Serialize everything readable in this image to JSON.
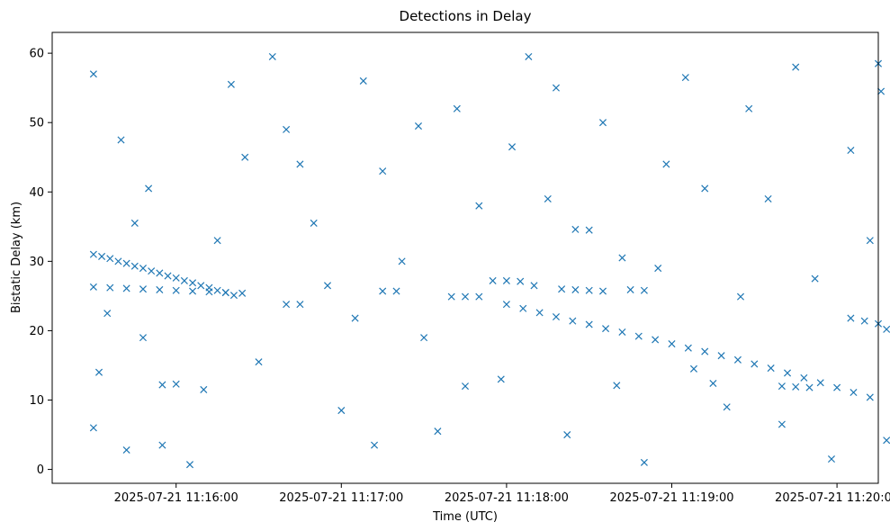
{
  "chart_data": {
    "type": "scatter",
    "title": "Detections in Delay",
    "xlabel": "Time (UTC)",
    "ylabel": "Bistatic Delay (km)",
    "marker": "x",
    "marker_color": "#1f77b4",
    "grid": false,
    "legend": "none",
    "xlim": [
      "2025-07-21 11:15:15",
      "2025-07-21 11:20:15"
    ],
    "ylim": [
      -2,
      63
    ],
    "xticks": [
      {
        "label": "2025-07-21 11:16:00",
        "value": "2025-07-21 11:16:00"
      },
      {
        "label": "2025-07-21 11:17:00",
        "value": "2025-07-21 11:17:00"
      },
      {
        "label": "2025-07-21 11:18:00",
        "value": "2025-07-21 11:18:00"
      },
      {
        "label": "2025-07-21 11:19:00",
        "value": "2025-07-21 11:19:00"
      },
      {
        "label": "2025-07-21 11:20:00",
        "value": "2025-07-21 11:20:00"
      }
    ],
    "yticks": [
      {
        "label": "0",
        "value": 0
      },
      {
        "label": "10",
        "value": 10
      },
      {
        "label": "20",
        "value": 20
      },
      {
        "label": "30",
        "value": 30
      },
      {
        "label": "40",
        "value": 40
      },
      {
        "label": "50",
        "value": 50
      },
      {
        "label": "60",
        "value": 60
      }
    ],
    "series": [
      {
        "points": [
          [
            "2025-07-21 11:15:30",
            31.0
          ],
          [
            "2025-07-21 11:15:33",
            30.7
          ],
          [
            "2025-07-21 11:15:36",
            30.4
          ],
          [
            "2025-07-21 11:15:39",
            30.0
          ],
          [
            "2025-07-21 11:15:42",
            29.7
          ],
          [
            "2025-07-21 11:15:45",
            29.3
          ],
          [
            "2025-07-21 11:15:48",
            29.0
          ],
          [
            "2025-07-21 11:15:51",
            28.6
          ],
          [
            "2025-07-21 11:15:54",
            28.3
          ],
          [
            "2025-07-21 11:15:57",
            27.9
          ],
          [
            "2025-07-21 11:16:00",
            27.6
          ],
          [
            "2025-07-21 11:16:03",
            27.2
          ],
          [
            "2025-07-21 11:16:06",
            26.9
          ],
          [
            "2025-07-21 11:16:09",
            26.5
          ],
          [
            "2025-07-21 11:16:12",
            26.2
          ],
          [
            "2025-07-21 11:16:15",
            25.8
          ],
          [
            "2025-07-21 11:16:18",
            25.5
          ],
          [
            "2025-07-21 11:16:21",
            25.1
          ],
          [
            "2025-07-21 11:15:30",
            26.3
          ],
          [
            "2025-07-21 11:15:36",
            26.2
          ],
          [
            "2025-07-21 11:15:42",
            26.1
          ],
          [
            "2025-07-21 11:15:48",
            26.0
          ],
          [
            "2025-07-21 11:15:54",
            25.9
          ],
          [
            "2025-07-21 11:16:00",
            25.8
          ],
          [
            "2025-07-21 11:16:06",
            25.7
          ],
          [
            "2025-07-21 11:16:12",
            25.6
          ],
          [
            "2025-07-21 11:16:18",
            25.5
          ],
          [
            "2025-07-21 11:16:24",
            25.4
          ],
          [
            "2025-07-21 11:16:40",
            23.8
          ],
          [
            "2025-07-21 11:16:45",
            23.8
          ],
          [
            "2025-07-21 11:17:05",
            21.8
          ],
          [
            "2025-07-21 11:17:15",
            25.7
          ],
          [
            "2025-07-21 11:17:20",
            25.7
          ],
          [
            "2025-07-21 11:17:40",
            24.9
          ],
          [
            "2025-07-21 11:17:45",
            24.9
          ],
          [
            "2025-07-21 11:17:50",
            24.9
          ],
          [
            "2025-07-21 11:17:55",
            27.2
          ],
          [
            "2025-07-21 11:18:00",
            27.2
          ],
          [
            "2025-07-21 11:18:05",
            27.1
          ],
          [
            "2025-07-21 11:18:10",
            26.5
          ],
          [
            "2025-07-21 11:18:20",
            26.0
          ],
          [
            "2025-07-21 11:18:25",
            25.9
          ],
          [
            "2025-07-21 11:18:30",
            25.8
          ],
          [
            "2025-07-21 11:18:35",
            25.7
          ],
          [
            "2025-07-21 11:18:45",
            25.9
          ],
          [
            "2025-07-21 11:18:50",
            25.8
          ],
          [
            "2025-07-21 11:18:00",
            23.8
          ],
          [
            "2025-07-21 11:18:06",
            23.2
          ],
          [
            "2025-07-21 11:18:12",
            22.6
          ],
          [
            "2025-07-21 11:18:18",
            22.0
          ],
          [
            "2025-07-21 11:18:24",
            21.4
          ],
          [
            "2025-07-21 11:18:30",
            20.9
          ],
          [
            "2025-07-21 11:18:36",
            20.3
          ],
          [
            "2025-07-21 11:18:42",
            19.8
          ],
          [
            "2025-07-21 11:18:48",
            19.2
          ],
          [
            "2025-07-21 11:18:54",
            18.7
          ],
          [
            "2025-07-21 11:19:00",
            18.1
          ],
          [
            "2025-07-21 11:19:06",
            17.5
          ],
          [
            "2025-07-21 11:19:12",
            17.0
          ],
          [
            "2025-07-21 11:19:18",
            16.4
          ],
          [
            "2025-07-21 11:19:24",
            15.8
          ],
          [
            "2025-07-21 11:19:30",
            15.2
          ],
          [
            "2025-07-21 11:19:36",
            14.6
          ],
          [
            "2025-07-21 11:19:42",
            13.9
          ],
          [
            "2025-07-21 11:19:48",
            13.2
          ],
          [
            "2025-07-21 11:19:54",
            12.5
          ],
          [
            "2025-07-21 11:20:00",
            11.8
          ],
          [
            "2025-07-21 11:20:06",
            11.1
          ],
          [
            "2025-07-21 11:20:12",
            10.4
          ],
          [
            "2025-07-21 11:19:40",
            12.0
          ],
          [
            "2025-07-21 11:19:45",
            11.9
          ],
          [
            "2025-07-21 11:19:50",
            11.8
          ],
          [
            "2025-07-21 11:20:05",
            21.8
          ],
          [
            "2025-07-21 11:20:10",
            21.4
          ],
          [
            "2025-07-21 11:20:15",
            21.0
          ],
          [
            "2025-07-21 11:20:18",
            20.2
          ],
          [
            "2025-07-21 11:19:25",
            24.9
          ],
          [
            "2025-07-21 11:15:55",
            12.2
          ],
          [
            "2025-07-21 11:16:00",
            12.3
          ],
          [
            "2025-07-21 11:17:45",
            12.0
          ],
          [
            "2025-07-21 11:18:40",
            12.1
          ],
          [
            "2025-07-21 11:19:15",
            12.4
          ],
          [
            "2025-07-21 11:18:25",
            34.6
          ],
          [
            "2025-07-21 11:18:30",
            34.5
          ],
          [
            "2025-07-21 11:15:30",
            57.0
          ],
          [
            "2025-07-21 11:15:40",
            47.5
          ],
          [
            "2025-07-21 11:15:50",
            40.5
          ],
          [
            "2025-07-21 11:15:45",
            35.5
          ],
          [
            "2025-07-21 11:15:35",
            22.5
          ],
          [
            "2025-07-21 11:15:48",
            19.0
          ],
          [
            "2025-07-21 11:15:32",
            14.0
          ],
          [
            "2025-07-21 11:15:30",
            6.0
          ],
          [
            "2025-07-21 11:15:55",
            3.5
          ],
          [
            "2025-07-21 11:16:05",
            0.7
          ],
          [
            "2025-07-21 11:16:10",
            11.5
          ],
          [
            "2025-07-21 11:16:15",
            33.0
          ],
          [
            "2025-07-21 11:16:20",
            55.5
          ],
          [
            "2025-07-21 11:16:25",
            45.0
          ],
          [
            "2025-07-21 11:16:35",
            59.5
          ],
          [
            "2025-07-21 11:16:45",
            44.0
          ],
          [
            "2025-07-21 11:16:50",
            35.5
          ],
          [
            "2025-07-21 11:16:55",
            26.5
          ],
          [
            "2025-07-21 11:17:00",
            8.5
          ],
          [
            "2025-07-21 11:17:08",
            56.0
          ],
          [
            "2025-07-21 11:17:15",
            43.0
          ],
          [
            "2025-07-21 11:17:22",
            30.0
          ],
          [
            "2025-07-21 11:17:30",
            19.0
          ],
          [
            "2025-07-21 11:17:35",
            5.5
          ],
          [
            "2025-07-21 11:17:42",
            52.0
          ],
          [
            "2025-07-21 11:17:50",
            38.0
          ],
          [
            "2025-07-21 11:17:58",
            13.0
          ],
          [
            "2025-07-21 11:18:02",
            46.5
          ],
          [
            "2025-07-21 11:18:08",
            59.5
          ],
          [
            "2025-07-21 11:18:15",
            39.0
          ],
          [
            "2025-07-21 11:18:22",
            5.0
          ],
          [
            "2025-07-21 11:18:35",
            50.0
          ],
          [
            "2025-07-21 11:18:42",
            30.5
          ],
          [
            "2025-07-21 11:18:50",
            1.0
          ],
          [
            "2025-07-21 11:18:58",
            44.0
          ],
          [
            "2025-07-21 11:19:05",
            56.5
          ],
          [
            "2025-07-21 11:19:12",
            40.5
          ],
          [
            "2025-07-21 11:19:20",
            9.0
          ],
          [
            "2025-07-21 11:19:28",
            52.0
          ],
          [
            "2025-07-21 11:19:35",
            39.0
          ],
          [
            "2025-07-21 11:19:45",
            58.0
          ],
          [
            "2025-07-21 11:19:52",
            27.5
          ],
          [
            "2025-07-21 11:19:58",
            1.5
          ],
          [
            "2025-07-21 11:20:05",
            46.0
          ],
          [
            "2025-07-21 11:20:12",
            33.0
          ],
          [
            "2025-07-21 11:20:15",
            58.5
          ],
          [
            "2025-07-21 11:20:18",
            4.2
          ],
          [
            "2025-07-21 11:20:16",
            54.5
          ],
          [
            "2025-07-21 11:17:12",
            3.5
          ],
          [
            "2025-07-21 11:16:30",
            15.5
          ],
          [
            "2025-07-21 11:18:55",
            29.0
          ],
          [
            "2025-07-21 11:19:40",
            6.5
          ],
          [
            "2025-07-21 11:15:42",
            2.8
          ],
          [
            "2025-07-21 11:16:40",
            49.0
          ],
          [
            "2025-07-21 11:17:28",
            49.5
          ],
          [
            "2025-07-21 11:18:18",
            55.0
          ],
          [
            "2025-07-21 11:19:08",
            14.5
          ]
        ]
      }
    ]
  }
}
